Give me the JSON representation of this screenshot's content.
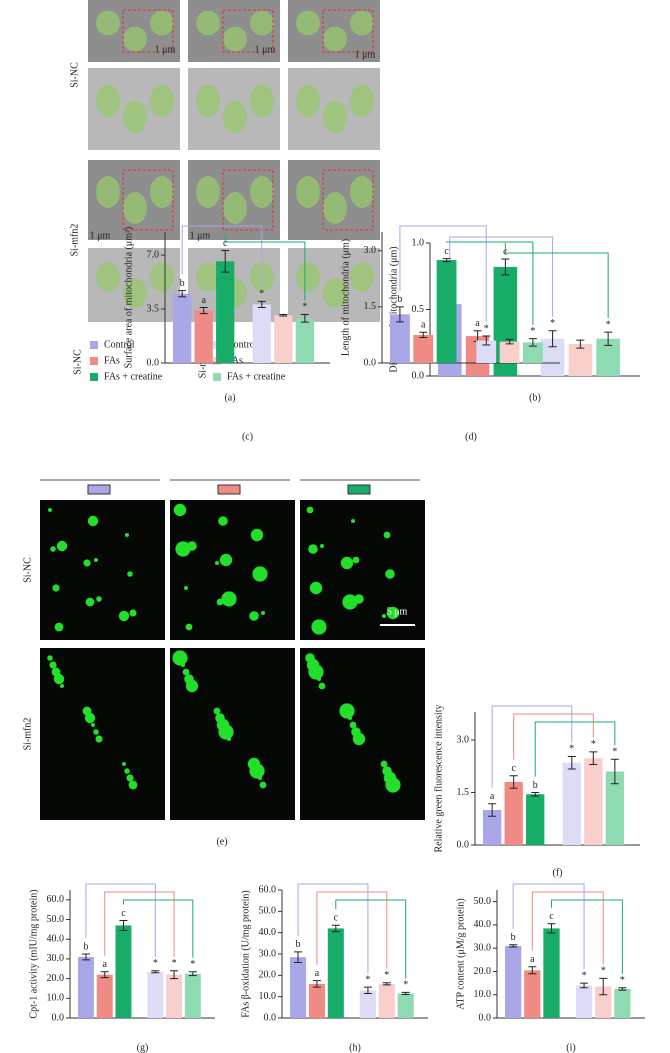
{
  "figure_a": {
    "panel": "(a)",
    "row_labels": [
      "Si-NC",
      "Si-mfn2"
    ],
    "scale_bars": [
      "1 μm",
      "1 μm",
      "1 μm",
      "1 μm",
      "1 μm"
    ],
    "legend": [
      {
        "label": "Si-NC",
        "items": [
          {
            "name": "Control",
            "color": "#a9a7e8"
          },
          {
            "name": "FAs",
            "color": "#f08a85"
          },
          {
            "name": "FAs + creatine",
            "color": "#17ad69"
          }
        ]
      },
      {
        "label": "Si-mfn2",
        "items": [
          {
            "name": "Control",
            "color": "#dcdcf7"
          },
          {
            "name": "FAs",
            "color": "#f9cfcc"
          },
          {
            "name": "FAs + creatine",
            "color": "#8edbb2"
          }
        ]
      }
    ]
  },
  "figure_e": {
    "panel": "(e)",
    "row_labels": [
      "Si-NC",
      "Si-mfn2"
    ],
    "scale_bar": "5 μm"
  },
  "chart_data": [
    {
      "type": "bar",
      "panel": "(b)",
      "ylabel": "Diameter of mitochondria (μm)",
      "ylim": [
        0,
        1.0
      ],
      "yticks": [
        {
          "value": 0,
          "label": "0.0"
        },
        {
          "value": 0.5,
          "label": "0.5"
        },
        {
          "value": 1,
          "label": "1.0"
        }
      ],
      "values": [
        0.54,
        0.3,
        0.82,
        0.28,
        0.24,
        0.28
      ],
      "errors": [
        0.03,
        0.04,
        0.06,
        0.06,
        0.03,
        0.05
      ],
      "annotations": [
        "b",
        "a",
        "c",
        "*",
        null,
        "*"
      ],
      "colors": [
        "#a9a7e8",
        "#f08a85",
        "#17ad69",
        "#dcdcf7",
        "#f9cfcc",
        "#8edbb2"
      ]
    },
    {
      "type": "bar",
      "panel": "(c)",
      "ylabel": "Surface area of mitochondria (μm²)",
      "ylim": [
        0,
        8.5
      ],
      "yticks": [
        {
          "value": 0,
          "label": "0.0"
        },
        3.5,
        {
          "value": 7,
          "label": "7.0"
        }
      ],
      "values": [
        4.5,
        3.4,
        6.6,
        3.8,
        3.1,
        2.9
      ],
      "errors": [
        0.2,
        0.2,
        0.7,
        0.2,
        0.05,
        0.25
      ],
      "annotations": [
        "b",
        "a",
        "c",
        "*",
        null,
        "*"
      ],
      "colors": [
        "#a9a7e8",
        "#f08a85",
        "#17ad69",
        "#dcdcf7",
        "#f9cfcc",
        "#8edbb2"
      ]
    },
    {
      "type": "bar",
      "panel": "(d)",
      "ylabel": "Length of mitochondria (μm)",
      "ylim": [
        0,
        3.5
      ],
      "yticks": [
        {
          "value": 0,
          "label": "0.0"
        },
        1.5,
        {
          "value": 3,
          "label": "3.0"
        }
      ],
      "values": [
        1.3,
        0.75,
        2.75,
        0.6,
        0.57,
        0.55
      ],
      "errors": [
        0.2,
        0.07,
        0.04,
        0.12,
        0.06,
        0.1
      ],
      "annotations": [
        "b",
        "a",
        "c",
        "*",
        null,
        "*"
      ],
      "colors": [
        "#a9a7e8",
        "#f08a85",
        "#17ad69",
        "#dcdcf7",
        "#f9cfcc",
        "#8edbb2"
      ]
    },
    {
      "type": "bar",
      "panel": "(f)",
      "ylabel": "Relative green fluorescence intensity",
      "ylim": [
        0,
        3.8
      ],
      "yticks": [
        {
          "value": 0,
          "label": "0.0"
        },
        1.5,
        {
          "value": 3,
          "label": "3.0"
        }
      ],
      "values": [
        1.0,
        1.8,
        1.45,
        2.35,
        2.48,
        2.1
      ],
      "errors": [
        0.18,
        0.18,
        0.05,
        0.18,
        0.18,
        0.35
      ],
      "annotations": [
        "a",
        "c",
        "b",
        "*",
        "*",
        "*"
      ],
      "colors": [
        "#a9a7e8",
        "#f08a85",
        "#17ad69",
        "#dcdcf7",
        "#f9cfcc",
        "#8edbb2"
      ]
    },
    {
      "type": "bar",
      "panel": "(g)",
      "ylabel": "Cpt-1 activity (mIU/mg protein)",
      "ylim": [
        0,
        65
      ],
      "yticks": [
        {
          "value": 0,
          "label": "0.0"
        },
        {
          "value": 10,
          "label": "10.0"
        },
        {
          "value": 20,
          "label": "20.0"
        },
        {
          "value": 30,
          "label": "30.0"
        },
        {
          "value": 40,
          "label": "40.0"
        },
        {
          "value": 50,
          "label": "50.0"
        },
        {
          "value": 60,
          "label": "60.0"
        }
      ],
      "values": [
        31,
        22,
        47,
        23.5,
        22,
        22.5
      ],
      "errors": [
        1.5,
        1.5,
        2.5,
        0.5,
        2,
        1
      ],
      "annotations": [
        "b",
        "a",
        "c",
        "*",
        "*",
        "*"
      ],
      "colors": [
        "#a9a7e8",
        "#f08a85",
        "#17ad69",
        "#dcdcf7",
        "#f9cfcc",
        "#8edbb2"
      ]
    },
    {
      "type": "bar",
      "panel": "(h)",
      "ylabel": "FAs β-oxidation (U/mg protein)",
      "ylim": [
        0,
        60
      ],
      "yticks": [
        {
          "value": 0,
          "label": "0.0"
        },
        {
          "value": 10,
          "label": "10.0"
        },
        {
          "value": 20,
          "label": "20.0"
        },
        {
          "value": 30,
          "label": "30.0"
        },
        {
          "value": 40,
          "label": "40.0"
        },
        {
          "value": 50,
          "label": "50.0"
        },
        {
          "value": 60,
          "label": "60.0"
        }
      ],
      "values": [
        28.5,
        16,
        42,
        13,
        16,
        11.5
      ],
      "errors": [
        2.5,
        1.5,
        1.5,
        1.5,
        0.5,
        0.5
      ],
      "annotations": [
        "b",
        "a",
        "c",
        "*",
        "*",
        "*"
      ],
      "colors": [
        "#a9a7e8",
        "#f08a85",
        "#17ad69",
        "#dcdcf7",
        "#f9cfcc",
        "#8edbb2"
      ]
    },
    {
      "type": "bar",
      "panel": "(i)",
      "ylabel": "ATP content (μM/g protein)",
      "ylim": [
        0,
        55
      ],
      "yticks": [
        {
          "value": 0,
          "label": "0.0"
        },
        {
          "value": 10,
          "label": "10.0"
        },
        {
          "value": 20,
          "label": "20.0"
        },
        {
          "value": 30,
          "label": "30.0"
        },
        {
          "value": 40,
          "label": "40.0"
        },
        {
          "value": 50,
          "label": "50.0"
        }
      ],
      "values": [
        31,
        20.5,
        38.5,
        14,
        13.5,
        12.5
      ],
      "errors": [
        0.5,
        1.5,
        2,
        1,
        3.5,
        0.5
      ],
      "annotations": [
        "b",
        "a",
        "c",
        "*",
        "*",
        "*"
      ],
      "colors": [
        "#a9a7e8",
        "#f08a85",
        "#17ad69",
        "#dcdcf7",
        "#f9cfcc",
        "#8edbb2"
      ]
    }
  ]
}
